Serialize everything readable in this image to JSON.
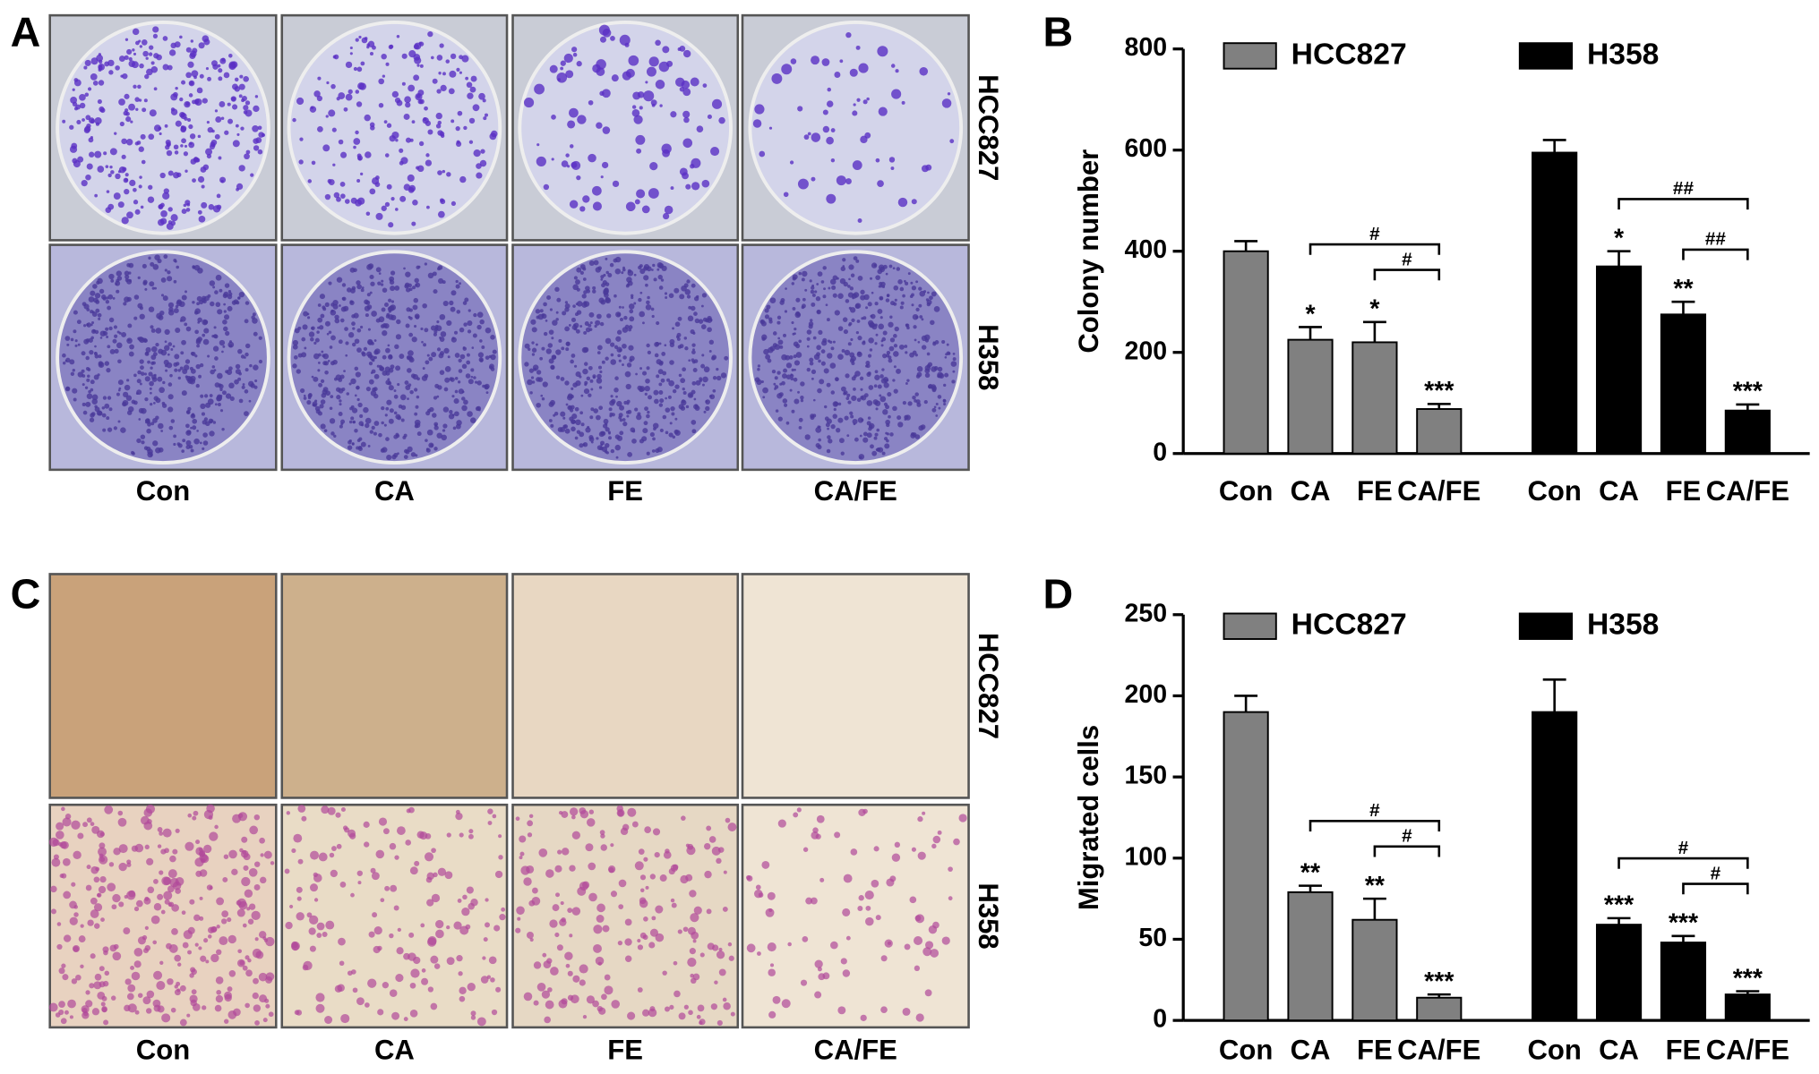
{
  "image_panels": [
    {
      "label": "A",
      "columns": [
        "Con",
        "CA",
        "FE",
        "CA/FE"
      ],
      "rows": [
        "HCC827",
        "H358"
      ]
    },
    {
      "label": "C",
      "columns": [
        "Con",
        "CA",
        "FE",
        "CA/FE"
      ],
      "rows": [
        "HCC827",
        "H358"
      ]
    }
  ],
  "chart_data": [
    {
      "type": "bar",
      "label": "B",
      "ylabel": "Colony number",
      "categories": [
        "Con",
        "CA",
        "FE",
        "CA/FE"
      ],
      "ylim": [
        0,
        800
      ],
      "yticks": [
        0,
        200,
        400,
        600,
        800
      ],
      "series": [
        {
          "name": "HCC827",
          "color": "#808080",
          "values": [
            400,
            225,
            220,
            88
          ],
          "errors": [
            20,
            25,
            40,
            10
          ],
          "annotations": [
            null,
            "*",
            "*",
            "***"
          ],
          "brackets": [
            {
              "from": 1,
              "to": 3,
              "label": "#"
            },
            {
              "from": 2,
              "to": 3,
              "label": "#"
            }
          ]
        },
        {
          "name": "H358",
          "color": "#000000",
          "values": [
            595,
            370,
            275,
            85
          ],
          "errors": [
            25,
            30,
            25,
            12
          ],
          "annotations": [
            null,
            "*",
            "**",
            "***"
          ],
          "brackets": [
            {
              "from": 1,
              "to": 3,
              "label": "##"
            },
            {
              "from": 2,
              "to": 3,
              "label": "##"
            }
          ]
        }
      ]
    },
    {
      "type": "bar",
      "label": "D",
      "ylabel": "Migrated cells",
      "categories": [
        "Con",
        "CA",
        "FE",
        "CA/FE"
      ],
      "ylim": [
        0,
        250
      ],
      "yticks": [
        0,
        50,
        100,
        150,
        200,
        250
      ],
      "series": [
        {
          "name": "HCC827",
          "color": "#808080",
          "values": [
            190,
            79,
            62,
            14
          ],
          "errors": [
            10,
            4,
            13,
            2
          ],
          "annotations": [
            null,
            "**",
            "**",
            "***"
          ],
          "brackets": [
            {
              "from": 1,
              "to": 3,
              "label": "#"
            },
            {
              "from": 2,
              "to": 3,
              "label": "#"
            }
          ]
        },
        {
          "name": "H358",
          "color": "#000000",
          "values": [
            190,
            59,
            48,
            16
          ],
          "errors": [
            20,
            4,
            4,
            2
          ],
          "annotations": [
            null,
            "***",
            "***",
            "***"
          ],
          "brackets": [
            {
              "from": 1,
              "to": 3,
              "label": "#"
            },
            {
              "from": 2,
              "to": 3,
              "label": "#"
            }
          ]
        }
      ]
    }
  ]
}
